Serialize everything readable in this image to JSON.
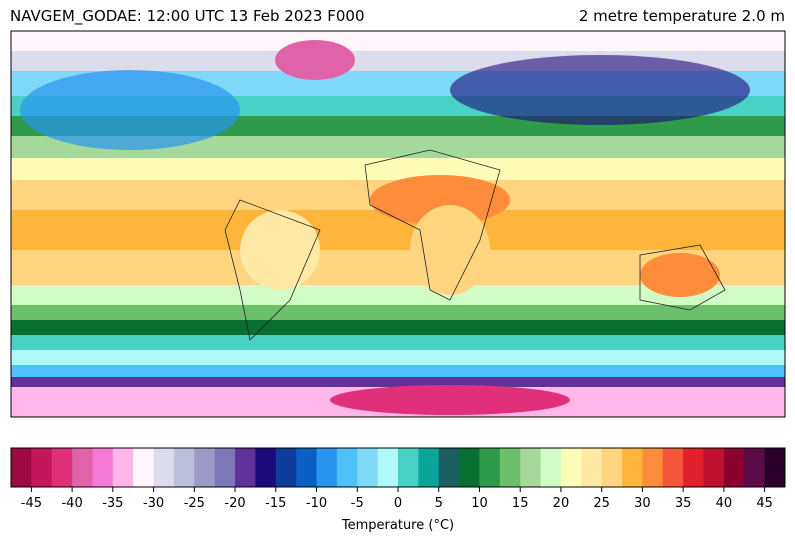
{
  "header": {
    "title_left": "NAVGEM_GODAE: 12:00 UTC 13 Feb 2023 F000",
    "title_right": "2 metre temperature 2.0 m"
  },
  "colorbar": {
    "lim": [
      -47.5,
      47.5
    ],
    "ticks": [
      -45,
      -40,
      -35,
      -30,
      -25,
      -20,
      -15,
      -10,
      -5,
      0,
      5,
      10,
      15,
      20,
      25,
      30,
      35,
      40,
      45
    ],
    "colors": [
      "#9e0a42",
      "#c4165a",
      "#e0307a",
      "#e062a8",
      "#f57ad8",
      "#ffb6e8",
      "#fff5fb",
      "#dcdcec",
      "#bdbddc",
      "#9e9ac8",
      "#7f78b8",
      "#5e3296",
      "#1d0a7a",
      "#0d3c9c",
      "#0a5fc4",
      "#2896f0",
      "#4ec1f7",
      "#7fd8f7",
      "#aefafa",
      "#48d1c4",
      "#0aa59a",
      "#1a5e64",
      "#0a6e32",
      "#2e9a4a",
      "#6cc06c",
      "#a5d99a",
      "#d2fcc6",
      "#fffcb8",
      "#ffe9a4",
      "#ffd580",
      "#ffb43c",
      "#ff8c3a",
      "#f5553a",
      "#e0202a",
      "#be1030",
      "#8c0030",
      "#5a0a46",
      "#280028"
    ],
    "label": "Temperature (°C)"
  }
}
